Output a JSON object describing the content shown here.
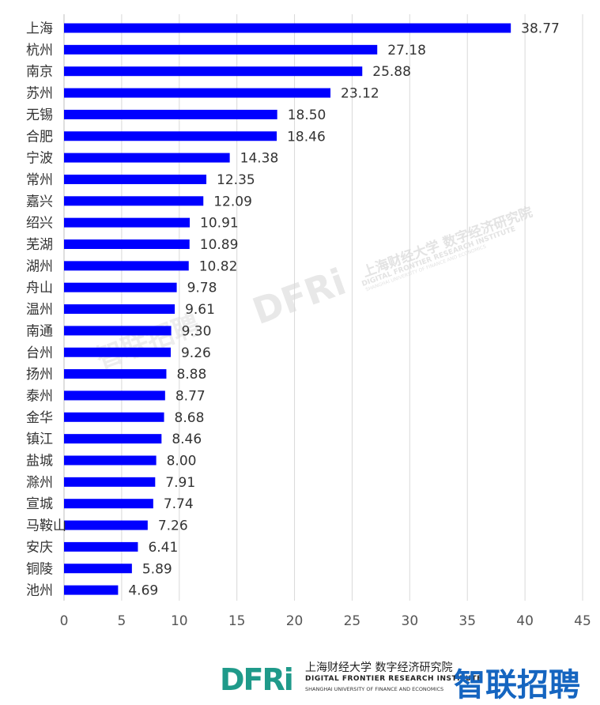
{
  "chart_data": {
    "type": "bar",
    "orientation": "horizontal",
    "categories": [
      "上海",
      "杭州",
      "南京",
      "苏州",
      "无锡",
      "合肥",
      "宁波",
      "常州",
      "嘉兴",
      "绍兴",
      "芜湖",
      "湖州",
      "舟山",
      "温州",
      "南通",
      "台州",
      "扬州",
      "泰州",
      "金华",
      "镇江",
      "盐城",
      "滁州",
      "宣城",
      "马鞍山",
      "安庆",
      "铜陵",
      "池州"
    ],
    "values": [
      38.77,
      27.18,
      25.88,
      23.12,
      18.5,
      18.46,
      14.38,
      12.35,
      12.09,
      10.91,
      10.89,
      10.82,
      9.78,
      9.61,
      9.3,
      9.26,
      8.88,
      8.77,
      8.68,
      8.46,
      8.0,
      7.91,
      7.74,
      7.26,
      6.41,
      5.89,
      4.69
    ],
    "value_labels": [
      "38.77",
      "27.18",
      "25.88",
      "23.12",
      "18.50",
      "18.46",
      "14.38",
      "12.35",
      "12.09",
      "10.91",
      "10.89",
      "10.82",
      "9.78",
      "9.61",
      "9.30",
      "9.26",
      "8.88",
      "8.77",
      "8.68",
      "8.46",
      "8.00",
      "7.91",
      "7.74",
      "7.26",
      "6.41",
      "5.89",
      "4.69"
    ],
    "xlim": [
      0,
      45
    ],
    "xticks": [
      "0",
      "5",
      "10",
      "15",
      "20",
      "25",
      "30",
      "35",
      "40",
      "45"
    ],
    "grid": "vertical",
    "bar_color": "#0000ff"
  },
  "watermarks": {
    "center_logo": "DFRi",
    "center_cn": "上海财经大学 数字经济研究院",
    "center_en": "DIGITAL FRONTIER RESEARCH INSTITUTE",
    "center_en2": "SHANGHAI UNIVERSITY OF FINANCE AND ECONOMICS",
    "left": "智联招聘"
  },
  "footer": {
    "dfri_logo": "DFRi",
    "institute_cn": "上海财经大学 数字经济研究院",
    "institute_en": "DIGITAL FRONTIER RESEARCH INSTITUTE",
    "institute_en2": "SHANGHAI UNIVERSITY OF FINANCE AND ECONOMICS",
    "zhilian": "智联招聘"
  }
}
